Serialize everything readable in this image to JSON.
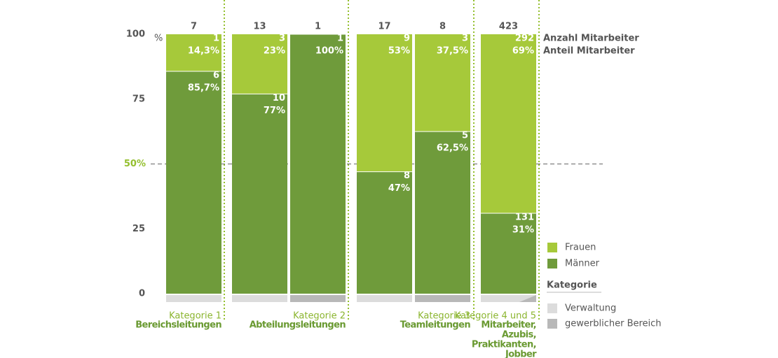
{
  "chart_data": {
    "type": "stacked-bar-100",
    "totals": [
      7,
      13,
      1,
      17,
      8,
      423
    ],
    "series": [
      {
        "name": "Frauen",
        "color": "#a6c93a",
        "values": [
          14.3,
          23,
          0,
          53,
          37.5,
          69
        ],
        "value_labels": [
          "14,3%",
          "23%",
          null,
          "53%",
          "37,5%",
          "69%"
        ],
        "counts": [
          1,
          3,
          null,
          9,
          3,
          292
        ]
      },
      {
        "name": "Männer",
        "color": "#6f9b3b",
        "values": [
          85.7,
          77,
          100,
          47,
          62.5,
          31
        ],
        "value_labels": [
          "85,7%",
          "77%",
          "100%",
          "47%",
          "62,5%",
          "31%"
        ],
        "counts": [
          6,
          10,
          1,
          8,
          5,
          131
        ]
      }
    ],
    "ylim": [
      0,
      100
    ],
    "yticks": [
      0,
      25,
      {
        "value": 50,
        "label": "50%"
      },
      75,
      100
    ],
    "y_unit": "%",
    "reference_line": 50,
    "row_labels": [
      "Anzahl Mitarbeiter",
      "Anteil Mitarbeiter"
    ],
    "groups": [
      {
        "label": "Kategorie 1",
        "lines": [
          "Bereichsleitungen"
        ]
      },
      {
        "label": "Kategorie 2",
        "lines": [
          "Abteilungsleitungen"
        ]
      },
      {
        "label": "Kategorie 3",
        "lines": [
          "Teamleitungen"
        ]
      },
      {
        "label": "Kategorie 4 und 5",
        "lines": [
          "Mitarbeiter,",
          "Azubis,",
          "Praktikanten,",
          "Jobber"
        ]
      }
    ],
    "category_legend": {
      "title": "Kategorie",
      "items": [
        {
          "name": "Verwaltung",
          "color": "#dcdcdc"
        },
        {
          "name": "gewerblicher Bereich",
          "color": "#b8b8b8"
        }
      ]
    },
    "bar_category": [
      [
        0
      ],
      [
        0
      ],
      [
        1
      ],
      [
        0
      ],
      [
        1
      ],
      [
        0,
        1
      ]
    ]
  }
}
